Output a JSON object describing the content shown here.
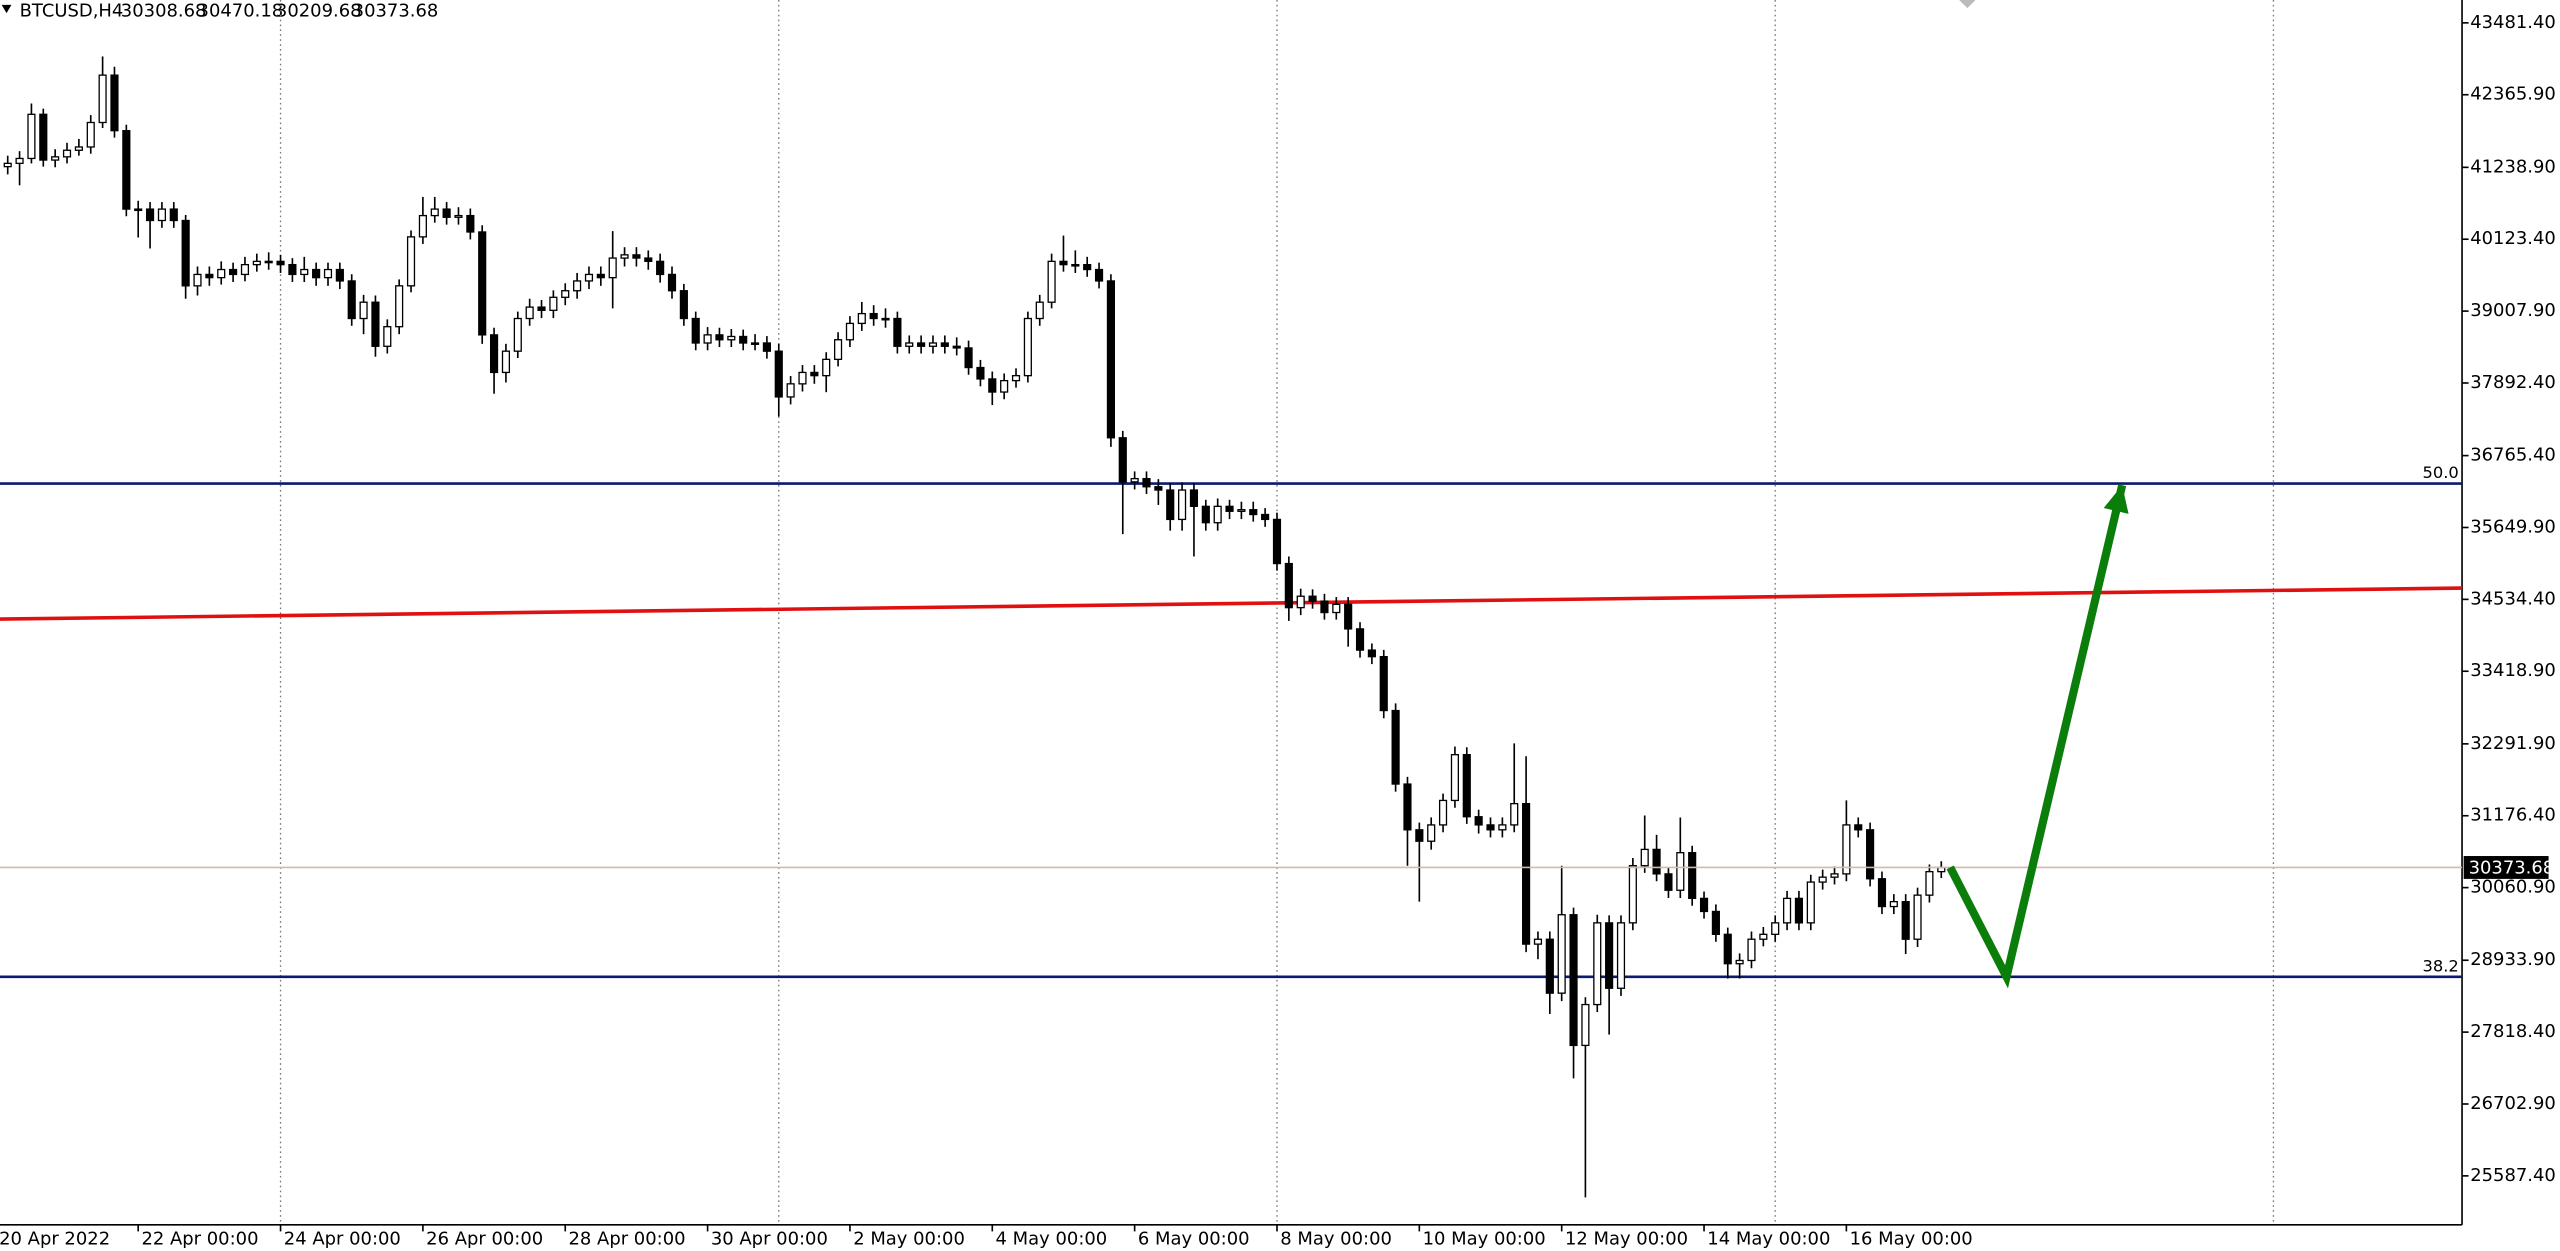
{
  "chart_data": {
    "type": "candlestick",
    "symbol": "BTCUSD,H4",
    "xlim": [
      1.4,
      831.6
    ],
    "ylim": [
      24827,
      43836
    ],
    "xticks": [
      {
        "value": 0,
        "label": "20 Apr 2022"
      },
      {
        "value": 48,
        "label": "22 Apr 00:00"
      },
      {
        "value": 96,
        "label": "24 Apr 00:00"
      },
      {
        "value": 144,
        "label": "26 Apr 00:00"
      },
      {
        "value": 192,
        "label": "28 Apr 00:00"
      },
      {
        "value": 240,
        "label": "30 Apr 00:00"
      },
      {
        "value": 288,
        "label": "2 May 00:00"
      },
      {
        "value": 336,
        "label": "4 May 00:00"
      },
      {
        "value": 384,
        "label": "6 May 00:00"
      },
      {
        "value": 432,
        "label": "8 May 00:00"
      },
      {
        "value": 480,
        "label": "10 May 00:00"
      },
      {
        "value": 528,
        "label": "12 May 00:00"
      },
      {
        "value": 576,
        "label": "14 May 00:00"
      },
      {
        "value": 624,
        "label": "16 May 00:00"
      }
    ],
    "xgrid": [
      96,
      264,
      432,
      600,
      768
    ],
    "yticks": [
      {
        "value": 43481.4,
        "label": "43481.40"
      },
      {
        "value": 42365.9,
        "label": "42365.90"
      },
      {
        "value": 41238.9,
        "label": "41238.90"
      },
      {
        "value": 40123.4,
        "label": "40123.40"
      },
      {
        "value": 39007.9,
        "label": "39007.90"
      },
      {
        "value": 37892.4,
        "label": "37892.40"
      },
      {
        "value": 36765.4,
        "label": "36765.40"
      },
      {
        "value": 35649.9,
        "label": "35649.90"
      },
      {
        "value": 34534.4,
        "label": "34534.40"
      },
      {
        "value": 33418.9,
        "label": "33418.90"
      },
      {
        "value": 32291.9,
        "label": "32291.90"
      },
      {
        "value": 31176.4,
        "label": "31176.40"
      },
      {
        "value": 30060.9,
        "label": "30060.90"
      },
      {
        "value": 28933.9,
        "label": "28933.90"
      },
      {
        "value": 27818.4,
        "label": "27818.40"
      },
      {
        "value": 26702.9,
        "label": "26702.90"
      },
      {
        "value": 25587.4,
        "label": "25587.40"
      }
    ],
    "x": [
      4,
      8,
      12,
      16,
      20,
      24,
      28,
      32,
      36,
      40,
      44,
      48,
      52,
      56,
      60,
      64,
      68,
      72,
      76,
      80,
      84,
      88,
      92,
      96,
      100,
      104,
      108,
      112,
      116,
      120,
      124,
      128,
      132,
      136,
      140,
      144,
      148,
      152,
      156,
      160,
      164,
      168,
      172,
      176,
      180,
      184,
      188,
      192,
      196,
      200,
      204,
      208,
      212,
      216,
      220,
      224,
      228,
      232,
      236,
      240,
      244,
      248,
      252,
      256,
      260,
      264,
      268,
      272,
      276,
      280,
      284,
      288,
      292,
      296,
      300,
      304,
      308,
      312,
      316,
      320,
      324,
      328,
      332,
      336,
      340,
      344,
      348,
      352,
      356,
      360,
      364,
      368,
      372,
      376,
      380,
      384,
      388,
      392,
      396,
      400,
      404,
      408,
      412,
      416,
      420,
      424,
      428,
      432,
      436,
      440,
      444,
      448,
      452,
      456,
      460,
      464,
      468,
      472,
      476,
      480,
      484,
      488,
      492,
      496,
      500,
      504,
      508,
      512,
      516,
      520,
      524,
      528,
      532,
      536,
      540,
      544,
      548,
      552,
      556,
      560,
      564,
      568,
      572,
      576,
      580,
      584,
      588,
      592,
      596,
      600,
      604,
      608,
      612,
      616,
      620,
      624,
      628,
      632,
      636,
      640,
      644,
      648,
      652,
      656
    ],
    "open": [
      41250,
      41301,
      41377,
      42062,
      41352,
      41402,
      41504,
      41555,
      41935,
      42670,
      41808,
      40591,
      40591,
      40414,
      40591,
      40414,
      39400,
      39577,
      39527,
      39653,
      39577,
      39729,
      39780,
      39780,
      39729,
      39577,
      39653,
      39527,
      39653,
      39476,
      38893,
      39146,
      38462,
      38766,
      39400,
      40160,
      40490,
      40591,
      40464,
      40490,
      40236,
      38639,
      38056,
      38386,
      38893,
      39070,
      39020,
      39222,
      39324,
      39476,
      39577,
      39527,
      39831,
      39881,
      39831,
      39780,
      39577,
      39324,
      38893,
      38513,
      38639,
      38563,
      38614,
      38513,
      38513,
      38386,
      37676,
      37879,
      38056,
      38006,
      38259,
      38563,
      38817,
      38969,
      38893,
      38893,
      38462,
      38513,
      38462,
      38513,
      38462,
      38436,
      38132,
      37955,
      37752,
      37929,
      38006,
      38893,
      39146,
      39780,
      39729,
      39729,
      39653,
      39476,
      37042,
      36358,
      36408,
      36282,
      36231,
      35775,
      36231,
      35978,
      35724,
      35978,
      35901,
      35926,
      35851,
      35775,
      35090,
      34406,
      34583,
      34507,
      34330,
      34457,
      34076,
      33747,
      33645,
      32809,
      31668,
      30958,
      30781,
      31034,
      31414,
      32124,
      31161,
      31034,
      30958,
      31034,
      31364,
      29184,
      29260,
      28423,
      29640,
      27612,
      28246,
      29514,
      28499,
      29514,
      30401,
      30654,
      30274,
      30020,
      30603,
      29894,
      29691,
      29336,
      28880,
      28930,
      29260,
      29336,
      29514,
      29894,
      29514,
      30147,
      30223,
      30274,
      31034,
      30958,
      30198,
      29767,
      29843,
      29260,
      29944,
      30308.68
    ],
    "high": [
      41420,
      41490,
      42230,
      42150,
      41520,
      41620,
      41680,
      42050,
      42960,
      42800,
      41900,
      40720,
      40700,
      40700,
      40700,
      40500,
      39700,
      39700,
      39780,
      39760,
      39850,
      39900,
      39920,
      39880,
      39830,
      39850,
      39760,
      39760,
      39760,
      39580,
      39260,
      39250,
      38880,
      39500,
      40260,
      40780,
      40780,
      40700,
      40620,
      40600,
      40340,
      38750,
      38500,
      39000,
      39200,
      39180,
      39330,
      39440,
      39600,
      39700,
      39700,
      40250,
      40000,
      40000,
      39950,
      39900,
      39700,
      39430,
      39000,
      38760,
      38750,
      38730,
      38720,
      38650,
      38620,
      38500,
      38000,
      38170,
      38170,
      38370,
      38680,
      38930,
      39150,
      39100,
      39050,
      39000,
      38630,
      38630,
      38630,
      38630,
      38600,
      38550,
      38250,
      38070,
      38040,
      38120,
      39000,
      39260,
      39900,
      40180,
      39950,
      39850,
      39760,
      39580,
      37150,
      36520,
      36520,
      36400,
      36340,
      36350,
      36340,
      36080,
      36100,
      36080,
      36050,
      36050,
      35950,
      35880,
      35200,
      34700,
      34690,
      34620,
      34570,
      34570,
      34180,
      33850,
      33750,
      32920,
      31780,
      31070,
      31150,
      31520,
      32250,
      32240,
      31270,
      31150,
      31150,
      32300,
      32100,
      29380,
      29380,
      30400,
      29750,
      28360,
      29640,
      29630,
      29630,
      30520,
      31180,
      30880,
      30380,
      31150,
      30710,
      30000,
      29800,
      29440,
      29040,
      29380,
      29450,
      29630,
      30010,
      30010,
      30260,
      30340,
      30390,
      31415,
      31150,
      31070,
      30310,
      29960,
      29960,
      30060,
      30420,
      30470.18
    ],
    "low": [
      41130,
      40960,
      41300,
      41250,
      41240,
      41300,
      41420,
      41450,
      41850,
      41700,
      40480,
      40150,
      39980,
      40300,
      40300,
      39200,
      39250,
      39400,
      39420,
      39460,
      39470,
      39620,
      39650,
      39600,
      39460,
      39460,
      39400,
      39400,
      39350,
      38780,
      38650,
      38300,
      38350,
      38650,
      39300,
      40050,
      40380,
      40350,
      40350,
      40120,
      38500,
      37726,
      37900,
      38280,
      38780,
      38900,
      38900,
      39100,
      39200,
      39350,
      39400,
      39050,
      39700,
      39700,
      39650,
      39450,
      39200,
      38780,
      38400,
      38400,
      38450,
      38450,
      38400,
      38400,
      38270,
      37372,
      37560,
      37760,
      37880,
      37750,
      38150,
      38450,
      38700,
      38780,
      38750,
      38350,
      38350,
      38350,
      38350,
      38350,
      38320,
      38020,
      37840,
      37550,
      37640,
      37820,
      37900,
      38780,
      39050,
      39620,
      39600,
      39540,
      39360,
      36900,
      35546,
      36240,
      36170,
      36000,
      35600,
      35600,
      35200,
      35600,
      35600,
      35780,
      35780,
      35740,
      35660,
      34980,
      34200,
      34290,
      34390,
      34220,
      34220,
      33800,
      33630,
      33530,
      32690,
      31550,
      30400,
      29843,
      30650,
      30920,
      31300,
      31050,
      30900,
      30840,
      30840,
      30920,
      29060,
      28950,
      28100,
      28300,
      27100,
      25254,
      28130,
      27780,
      28380,
      29400,
      30290,
      30160,
      29900,
      29900,
      29780,
      29580,
      29220,
      28650,
      28650,
      28810,
      29150,
      29220,
      29400,
      29400,
      29400,
      30030,
      30110,
      30160,
      30840,
      30080,
      29650,
      29650,
      29030,
      29140,
      29830,
      30209.68
    ],
    "close": [
      41301,
      41377,
      42062,
      41352,
      41402,
      41504,
      41555,
      41935,
      42670,
      41808,
      40591,
      40591,
      40414,
      40591,
      40414,
      39400,
      39577,
      39527,
      39653,
      39577,
      39729,
      39780,
      39780,
      39729,
      39577,
      39653,
      39527,
      39653,
      39476,
      38893,
      39146,
      38462,
      38766,
      39400,
      40160,
      40490,
      40591,
      40464,
      40490,
      40236,
      38639,
      38056,
      38386,
      38893,
      39070,
      39020,
      39222,
      39324,
      39476,
      39577,
      39527,
      39831,
      39881,
      39831,
      39780,
      39577,
      39324,
      38893,
      38513,
      38639,
      38563,
      38614,
      38513,
      38513,
      38386,
      37676,
      37879,
      38056,
      38006,
      38259,
      38563,
      38817,
      38969,
      38893,
      38893,
      38462,
      38513,
      38462,
      38513,
      38462,
      38436,
      38132,
      37955,
      37752,
      37929,
      38006,
      38893,
      39146,
      39780,
      39729,
      39729,
      39653,
      39476,
      37042,
      36358,
      36408,
      36282,
      36231,
      35775,
      36231,
      35978,
      35724,
      35978,
      35901,
      35926,
      35851,
      35775,
      35090,
      34406,
      34583,
      34507,
      34330,
      34457,
      34076,
      33747,
      33645,
      32809,
      31668,
      30958,
      30781,
      31034,
      31414,
      32124,
      31161,
      31034,
      30958,
      31034,
      31364,
      29184,
      29260,
      28423,
      29640,
      27612,
      28246,
      29514,
      28499,
      29514,
      30401,
      30654,
      30274,
      30020,
      30603,
      29894,
      29691,
      29336,
      28880,
      28930,
      29260,
      29336,
      29514,
      29894,
      29514,
      30147,
      30223,
      30274,
      31034,
      30958,
      30198,
      29767,
      29843,
      29260,
      29944,
      30308.68,
      30373.68
    ],
    "levels": [
      {
        "label": "50.0",
        "value": 36332
      },
      {
        "label": "38.2",
        "value": 28677
      }
    ],
    "level_color": "#0b1a6e",
    "trendline": {
      "color": "#e01010",
      "x": [
        1.4,
        831.6
      ],
      "y": [
        34228,
        34710
      ]
    },
    "arrow": {
      "color": "#0b7d0b",
      "x": [
        659,
        678,
        717
      ],
      "y": [
        30375,
        28677,
        36306
      ]
    },
    "bid_color": "#d9b8a8",
    "grid": true
  }
}
